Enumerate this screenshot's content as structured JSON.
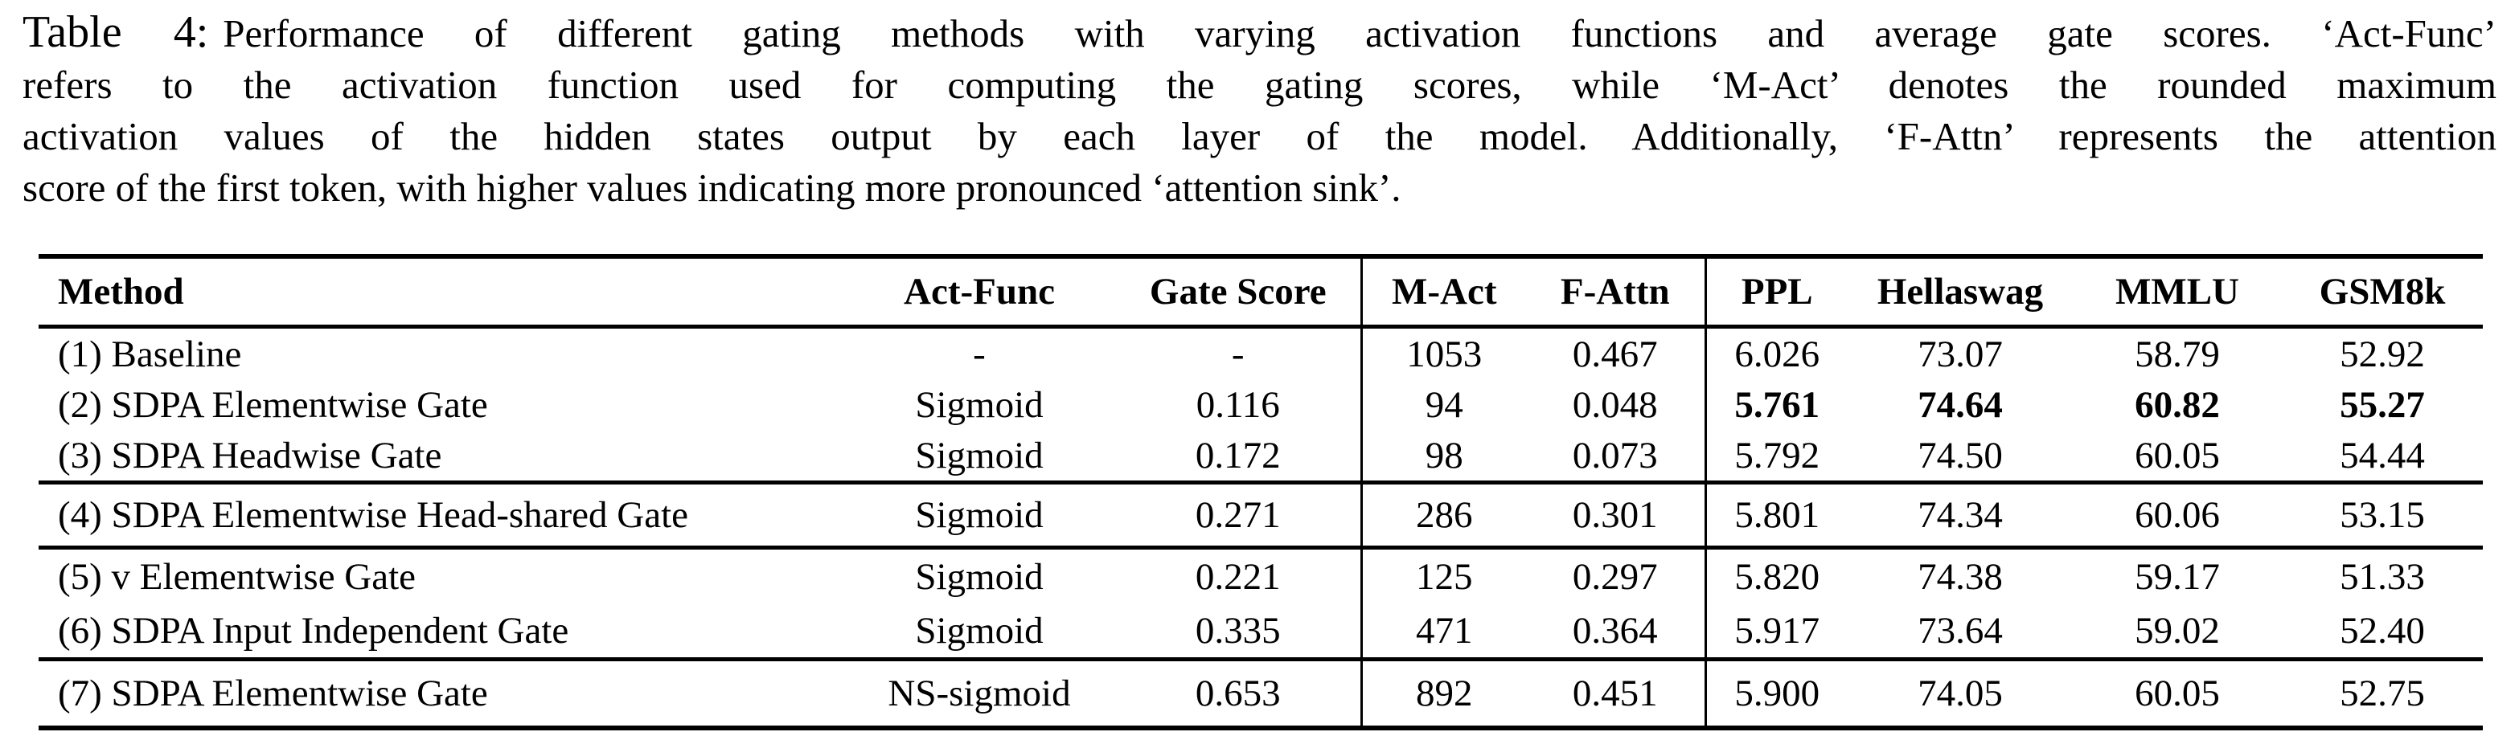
{
  "caption": {
    "label": "Table 4:",
    "lines": [
      "Performance of different gating methods with varying activation functions and average gate scores. ‘Act-Func’",
      "refers to the activation function used for computing the gating scores, while ‘M-Act’ denotes the rounded maximum",
      "activation values of the hidden states output by each layer of the model. Additionally, ‘F-Attn’ represents the attention",
      "score of the first token, with higher values indicating more pronounced ‘attention sink’."
    ]
  },
  "table": {
    "columns": [
      "Method",
      "Act-Func",
      "Gate Score",
      "M-Act",
      "F-Attn",
      "PPL",
      "Hellaswag",
      "MMLU",
      "GSM8k"
    ],
    "groups": [
      {
        "rows": [
          {
            "cells": [
              "(1) Baseline",
              "-",
              "-",
              "1053",
              "0.467",
              "6.026",
              "73.07",
              "58.79",
              "52.92"
            ],
            "bold": []
          },
          {
            "cells": [
              "(2) SDPA Elementwise Gate",
              "Sigmoid",
              "0.116",
              "94",
              "0.048",
              "5.761",
              "74.64",
              "60.82",
              "55.27"
            ],
            "bold": [
              5,
              6,
              7,
              8
            ]
          },
          {
            "cells": [
              "(3) SDPA Headwise Gate",
              "Sigmoid",
              "0.172",
              "98",
              "0.073",
              "5.792",
              "74.50",
              "60.05",
              "54.44"
            ],
            "bold": []
          }
        ]
      },
      {
        "rows": [
          {
            "cells": [
              "(4) SDPA Elementwise Head-shared Gate",
              "Sigmoid",
              "0.271",
              "286",
              "0.301",
              "5.801",
              "74.34",
              "60.06",
              "53.15"
            ],
            "bold": []
          }
        ]
      },
      {
        "rows": [
          {
            "cells": [
              "(5) v Elementwise Gate",
              "Sigmoid",
              "0.221",
              "125",
              "0.297",
              "5.820",
              "74.38",
              "59.17",
              "51.33"
            ],
            "bold": []
          },
          {
            "cells": [
              "(6) SDPA Input Independent Gate",
              "Sigmoid",
              "0.335",
              "471",
              "0.364",
              "5.917",
              "73.64",
              "59.02",
              "52.40"
            ],
            "bold": []
          }
        ]
      },
      {
        "rows": [
          {
            "cells": [
              "(7) SDPA Elementwise Gate",
              "NS-sigmoid",
              "0.653",
              "892",
              "0.451",
              "5.900",
              "74.05",
              "60.05",
              "52.75"
            ],
            "bold": []
          }
        ]
      }
    ]
  },
  "colors": {
    "text": "#000000",
    "background": "#ffffff",
    "rule": "#000000"
  }
}
